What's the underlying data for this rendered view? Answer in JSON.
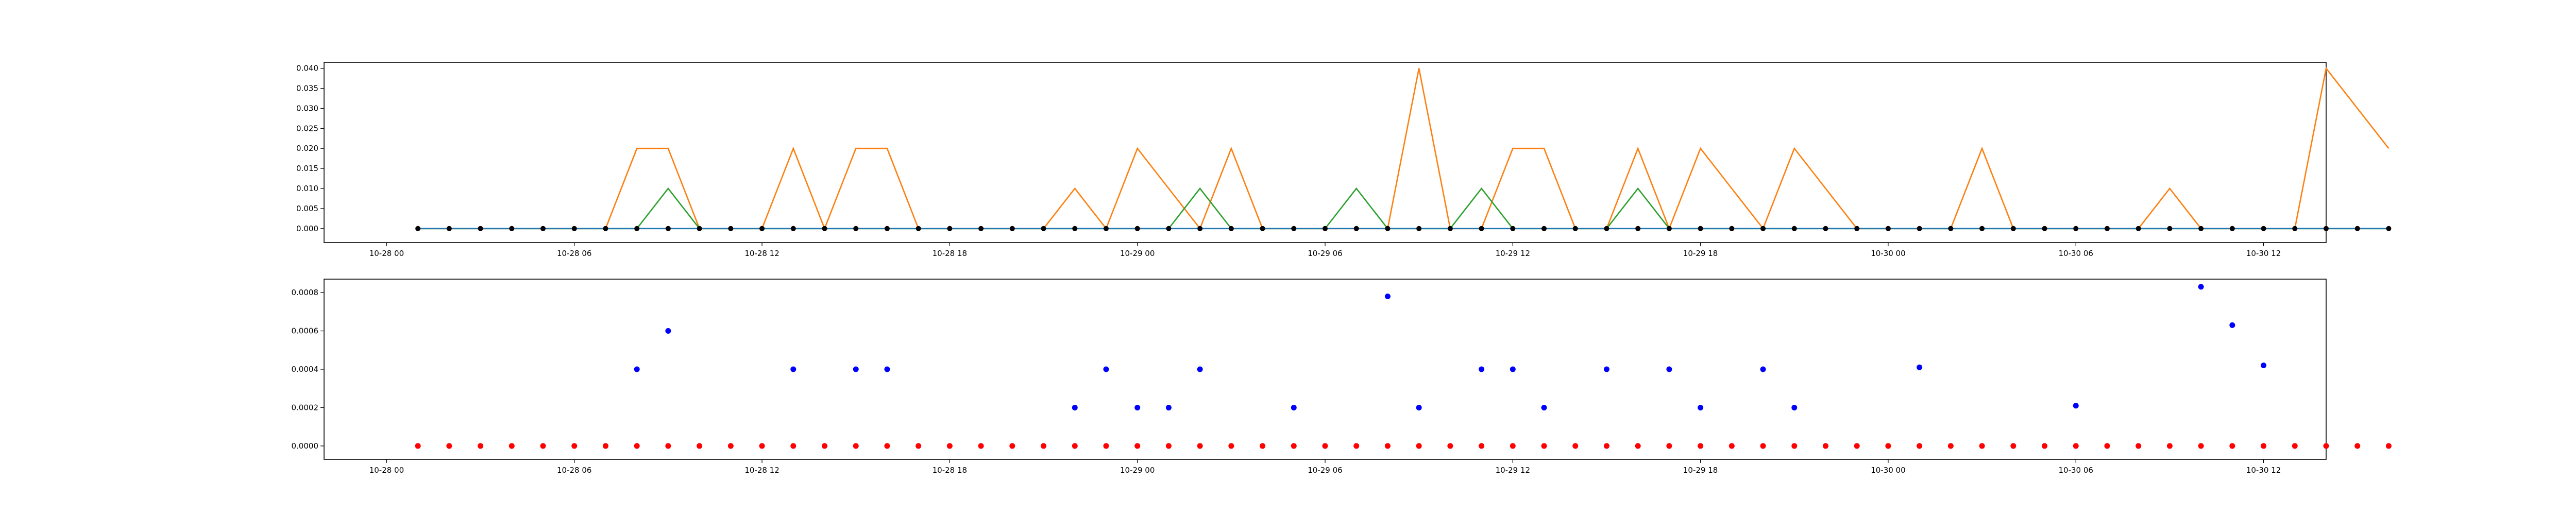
{
  "chart_data": [
    {
      "type": "line",
      "x_start": "2024-10-28 01:00",
      "x_step_hours": 1,
      "xlim": [
        "2024-10-27 22:00",
        "2024-10-30 14:00"
      ],
      "ylim": [
        -0.0035,
        0.0415
      ],
      "grid": false,
      "x_ticks": [
        {
          "value": "2024-10-28 00:00",
          "label": "10-28 00"
        },
        {
          "value": "2024-10-28 06:00",
          "label": "10-28 06"
        },
        {
          "value": "2024-10-28 12:00",
          "label": "10-28 12"
        },
        {
          "value": "2024-10-28 18:00",
          "label": "10-28 18"
        },
        {
          "value": "2024-10-29 00:00",
          "label": "10-29 00"
        },
        {
          "value": "2024-10-29 06:00",
          "label": "10-29 06"
        },
        {
          "value": "2024-10-29 12:00",
          "label": "10-29 12"
        },
        {
          "value": "2024-10-29 18:00",
          "label": "10-29 18"
        },
        {
          "value": "2024-10-30 00:00",
          "label": "10-30 00"
        },
        {
          "value": "2024-10-30 06:00",
          "label": "10-30 06"
        },
        {
          "value": "2024-10-30 12:00",
          "label": "10-30 12"
        }
      ],
      "y_ticks": [
        {
          "value": 0.0,
          "label": "0.000"
        },
        {
          "value": 0.005,
          "label": "0.005"
        },
        {
          "value": 0.01,
          "label": "0.010"
        },
        {
          "value": 0.015,
          "label": "0.015"
        },
        {
          "value": 0.02,
          "label": "0.020"
        },
        {
          "value": 0.025,
          "label": "0.025"
        },
        {
          "value": 0.03,
          "label": "0.030"
        },
        {
          "value": 0.035,
          "label": "0.035"
        },
        {
          "value": 0.04,
          "label": "0.040"
        }
      ],
      "series": [
        {
          "color": "#ff7f0e",
          "marker": "none",
          "values": [
            0,
            0,
            0,
            0,
            0,
            0,
            0,
            0.02,
            0.02,
            0,
            0,
            0,
            0.02,
            0,
            0.02,
            0.02,
            0,
            0,
            0,
            0,
            0,
            0.01,
            0,
            0.02,
            0.01,
            0,
            0.02,
            0,
            0,
            0,
            0,
            0,
            0.04,
            0,
            0,
            0.02,
            0.02,
            0,
            0,
            0.02,
            0,
            0.02,
            0.01,
            0,
            0.02,
            0.01,
            0,
            0,
            0,
            0,
            0.02,
            0,
            0,
            0,
            0,
            0,
            0.01,
            0,
            0,
            0,
            0,
            0.04,
            0.03,
            0.02
          ]
        },
        {
          "color": "#2ca02c",
          "marker": "none",
          "values": [
            0,
            0,
            0,
            0,
            0,
            0,
            0,
            0,
            0.01,
            0,
            0,
            0,
            0,
            0,
            0,
            0,
            0,
            0,
            0,
            0,
            0,
            0,
            0,
            0,
            0,
            0.01,
            0,
            0,
            0,
            0,
            0.01,
            0,
            0,
            0,
            0.01,
            0,
            0,
            0,
            0,
            0.01,
            0,
            0,
            0,
            0,
            0,
            0,
            0,
            0,
            0,
            0,
            0,
            0,
            0,
            0,
            0,
            0,
            0,
            0,
            0,
            0,
            0,
            0,
            0,
            0
          ]
        },
        {
          "color": "#1f77b4",
          "marker": "circle",
          "marker_color": "#000000",
          "values": [
            0,
            0,
            0,
            0,
            0,
            0,
            0,
            0,
            0,
            0,
            0,
            0,
            0,
            0,
            0,
            0,
            0,
            0,
            0,
            0,
            0,
            0,
            0,
            0,
            0,
            0,
            0,
            0,
            0,
            0,
            0,
            0,
            0,
            0,
            0,
            0,
            0,
            0,
            0,
            0,
            0,
            0,
            0,
            0,
            0,
            0,
            0,
            0,
            0,
            0,
            0,
            0,
            0,
            0,
            0,
            0,
            0,
            0,
            0,
            0,
            0,
            0,
            0,
            0
          ]
        }
      ]
    },
    {
      "type": "scatter",
      "x_start": "2024-10-28 01:00",
      "x_step_hours": 1,
      "xlim": [
        "2024-10-27 22:00",
        "2024-10-30 14:00"
      ],
      "ylim": [
        -7e-05,
        0.00087
      ],
      "grid": false,
      "y_ticks": [
        {
          "value": 0.0,
          "label": "0.0000"
        },
        {
          "value": 0.0002,
          "label": "0.0002"
        },
        {
          "value": 0.0004,
          "label": "0.0004"
        },
        {
          "value": 0.0006,
          "label": "0.0006"
        },
        {
          "value": 0.0008,
          "label": "0.0008"
        }
      ],
      "series": [
        {
          "color": "#ff0000",
          "values": [
            0,
            0,
            0,
            0,
            0,
            0,
            0,
            0,
            0,
            0,
            0,
            0,
            0,
            0,
            0,
            0,
            0,
            0,
            0,
            0,
            0,
            0,
            0,
            0,
            0,
            0,
            0,
            0,
            0,
            0,
            0,
            0,
            0,
            0,
            0,
            0,
            0,
            0,
            0,
            0,
            0,
            0,
            0,
            0,
            0,
            0,
            0,
            0,
            0,
            0,
            0,
            0,
            0,
            0,
            0,
            0,
            0,
            0,
            0,
            0,
            0,
            0,
            0,
            0
          ]
        },
        {
          "color": "#0000ff",
          "points": [
            {
              "x": "2024-10-28 08:00",
              "y": 0.0004
            },
            {
              "x": "2024-10-28 09:00",
              "y": 0.0006
            },
            {
              "x": "2024-10-28 13:00",
              "y": 0.0004
            },
            {
              "x": "2024-10-28 15:00",
              "y": 0.0004
            },
            {
              "x": "2024-10-28 16:00",
              "y": 0.0004
            },
            {
              "x": "2024-10-28 22:00",
              "y": 0.0002
            },
            {
              "x": "2024-10-28 23:00",
              "y": 0.0004
            },
            {
              "x": "2024-10-29 00:00",
              "y": 0.0002
            },
            {
              "x": "2024-10-29 01:00",
              "y": 0.0002
            },
            {
              "x": "2024-10-29 02:00",
              "y": 0.0004
            },
            {
              "x": "2024-10-29 05:00",
              "y": 0.0002
            },
            {
              "x": "2024-10-29 08:00",
              "y": 0.00078
            },
            {
              "x": "2024-10-29 09:00",
              "y": 0.0002
            },
            {
              "x": "2024-10-29 11:00",
              "y": 0.0004
            },
            {
              "x": "2024-10-29 12:00",
              "y": 0.0004
            },
            {
              "x": "2024-10-29 13:00",
              "y": 0.0002
            },
            {
              "x": "2024-10-29 15:00",
              "y": 0.0004
            },
            {
              "x": "2024-10-29 17:00",
              "y": 0.0004
            },
            {
              "x": "2024-10-29 18:00",
              "y": 0.0002
            },
            {
              "x": "2024-10-29 20:00",
              "y": 0.0004
            },
            {
              "x": "2024-10-29 21:00",
              "y": 0.0002
            },
            {
              "x": "2024-10-30 01:00",
              "y": 0.00041
            },
            {
              "x": "2024-10-30 06:00",
              "y": 0.00021
            },
            {
              "x": "2024-10-30 10:00",
              "y": 0.00083
            },
            {
              "x": "2024-10-30 11:00",
              "y": 0.00063
            },
            {
              "x": "2024-10-30 12:00",
              "y": 0.00042
            }
          ]
        }
      ]
    }
  ]
}
